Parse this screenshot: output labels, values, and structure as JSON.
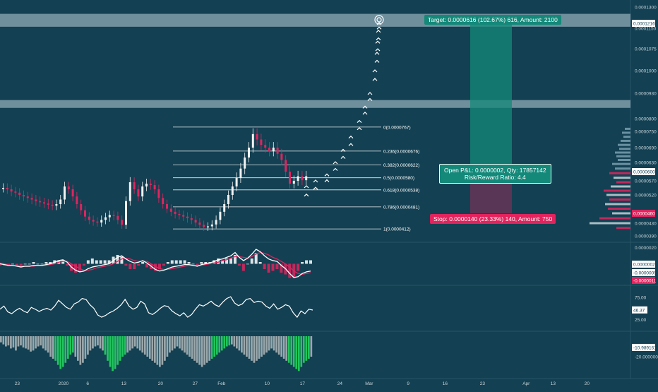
{
  "colors": {
    "background": "#134052",
    "bull": "#f2f2f2",
    "bear": "#e0245e",
    "target": "#14897a",
    "stop": "#e0245e",
    "zone": "#bcd0d8",
    "hist_pos": "#22c55e",
    "hist_neg": "#9aa7ab"
  },
  "trade": {
    "target_label": "Target: 0.0000616 (102.67%) 616, Amount: 2100",
    "stop_label": "Stop: 0.0000140 (23.33%) 140, Amount: 750",
    "pnl_line1": "Open P&L: 0.0000002, Qty: 17857142",
    "pnl_line2": "Risk/Reward Ratio: 4.4"
  },
  "chart_data": [
    {
      "type": "line",
      "name": "price",
      "x_labels": [
        "23",
        "2020",
        "6",
        "13",
        "20",
        "27",
        "Feb",
        "10",
        "17",
        "24",
        "Mar",
        "9",
        "16",
        "23",
        "Apr",
        "13",
        "20"
      ],
      "price_axis_ticks": [
        "0.0001300",
        "0.0001150",
        "0.0001075",
        "0.0001000",
        "0.0000930",
        "0.0000800",
        "0.0000750",
        "0.0000690",
        "0.0000630",
        "0.0000570",
        "0.0000520",
        "0.0000430",
        "0.0000390"
      ],
      "price_badges": [
        {
          "value": "0.0001216",
          "color": "#ffffff",
          "text_color": "#134052"
        },
        {
          "value": "0.0000600",
          "color": "#ffffff",
          "text_color": "#134052"
        },
        {
          "value": "0.0000460",
          "color": "#e0245e",
          "text_color": "#ffffff"
        }
      ],
      "fib_levels": [
        {
          "label": "0(0.0000767)",
          "value": 7.67e-05
        },
        {
          "label": "0.236(0.0000676)",
          "value": 6.76e-05
        },
        {
          "label": "0.382(0.0000622)",
          "value": 6.22e-05
        },
        {
          "label": "0.5(0.0000580)",
          "value": 5.8e-05
        },
        {
          "label": "0.618(0.0000538)",
          "value": 5.38e-05
        },
        {
          "label": "0.786(0.0000481)",
          "value": 4.81e-05
        },
        {
          "label": "1(0.0000412)",
          "value": 4.12e-05
        }
      ],
      "resistance_zones": [
        [
          0.000117,
          0.0001265
        ],
        [
          8.55e-05,
          8.95e-05
        ]
      ],
      "trade_entry": 6e-05,
      "trade_target": 0.0001216,
      "trade_stop": 4.6e-05,
      "projection": [
        [
          5.28e-05,
          5.5e-05
        ],
        [
          5.52e-05,
          5.7e-05
        ],
        [
          5.78e-05,
          5.9e-05
        ],
        [
          6.15e-05,
          6.3e-05
        ],
        [
          6.6e-05,
          6.8e-05
        ],
        [
          7.1e-05,
          7.3e-05
        ],
        [
          7.7e-05,
          7.9e-05
        ],
        [
          8.4e-05,
          8.6e-05
        ],
        [
          9.1e-05,
          9.3e-05
        ],
        [
          9.8e-05,
          0.0001
        ],
        [
          0.000104,
          0.000106
        ],
        [
          0.000108,
          0.00011
        ],
        [
          0.000112,
          0.000114
        ],
        [
          0.0001185,
          0.0001216
        ]
      ],
      "closes": [
        5.45e-05,
        5.4e-05,
        5.32e-05,
        5.28e-05,
        5.2e-05,
        5.15e-05,
        5.1e-05,
        5.05e-05,
        5e-05,
        4.96e-05,
        4.92e-05,
        4.88e-05,
        4.85e-05,
        4.9e-05,
        5.05e-05,
        5.5e-05,
        5.4e-05,
        5.15e-05,
        4.9e-05,
        4.7e-05,
        4.5e-05,
        4.4e-05,
        4.35e-05,
        4.32e-05,
        4.4e-05,
        4.48e-05,
        4.55e-05,
        4.52e-05,
        4.4e-05,
        4.25e-05,
        5e-05,
        5.65e-05,
        5.4e-05,
        5.15e-05,
        5.5e-05,
        5.6e-05,
        5.55e-05,
        5.4e-05,
        5.1e-05,
        4.9e-05,
        4.75e-05,
        4.65e-05,
        4.58e-05,
        4.55e-05,
        4.5e-05,
        4.45e-05,
        4.4e-05,
        4.32e-05,
        4.25e-05,
        4.18e-05,
        4.2e-05,
        4.26e-05,
        4.4e-05,
        4.65e-05,
        4.9e-05,
        5.2e-05,
        5.5e-05,
        5.8e-05,
        6.1e-05,
        6.5e-05,
        6.9e-05,
        7.4e-05,
        7.2e-05,
        7e-05,
        6.9e-05,
        6.75e-05,
        6.9e-05,
        6.65e-05,
        6.4e-05,
        6e-05,
        5.6e-05,
        5.7e-05,
        5.85e-05,
        5.72e-05,
        5.85e-05
      ],
      "volume_profile": [
        [
          7.6e-05,
          8
        ],
        [
          7.45e-05,
          12
        ],
        [
          7.3e-05,
          10
        ],
        [
          7.15e-05,
          14
        ],
        [
          7e-05,
          18
        ],
        [
          6.85e-05,
          16
        ],
        [
          6.7e-05,
          22
        ],
        [
          6.55e-05,
          20
        ],
        [
          6.4e-05,
          18
        ],
        [
          6.25e-05,
          26
        ],
        [
          6.1e-05,
          22
        ],
        [
          5.95e-05,
          30
        ],
        [
          5.8e-05,
          24
        ],
        [
          5.65e-05,
          20
        ],
        [
          5.5e-05,
          28
        ],
        [
          5.35e-05,
          38
        ],
        [
          5.2e-05,
          34
        ],
        [
          5.05e-05,
          30
        ],
        [
          4.9e-05,
          36
        ],
        [
          4.75e-05,
          32
        ],
        [
          4.6e-05,
          26
        ],
        [
          4.45e-05,
          44
        ],
        [
          4.3e-05,
          58
        ],
        [
          4.15e-05,
          20
        ]
      ]
    },
    {
      "type": "line",
      "name": "macd",
      "axis_ticks": [
        "0.0000020"
      ],
      "badges": [
        {
          "value": "0.0000002",
          "color": "#ffffff",
          "text_color": "#134052"
        },
        {
          "value": "-0.0000009",
          "color": "#ffffff",
          "text_color": "#134052"
        },
        {
          "value": "-0.0000011",
          "color": "#e0245e",
          "text_color": "#ffffff"
        }
      ],
      "ylim": [
        -2.5e-06,
        2.5e-06
      ],
      "macd": [
        0.0,
        -1e-07,
        -2e-07,
        -2e-07,
        -3e-07,
        -4e-07,
        -3e-07,
        -3e-07,
        -2e-07,
        -2e-07,
        -2e-07,
        -1e-07,
        0.0,
        2e-07,
        4e-07,
        5e-07,
        2e-07,
        -4e-07,
        -8e-07,
        -1e-06,
        -9e-07,
        -6e-07,
        -4e-07,
        -3e-07,
        -2e-07,
        -1e-07,
        0.0,
        4e-07,
        8e-07,
        1e-06,
        6e-07,
        3e-07,
        1e-07,
        2e-07,
        4e-07,
        1e-07,
        -3e-07,
        -7e-07,
        -9e-07,
        -8e-07,
        -6e-07,
        -4e-07,
        -3e-07,
        -2e-07,
        -1e-07,
        -1e-07,
        -2e-07,
        -3e-07,
        -1e-07,
        0.0,
        1e-07,
        3e-07,
        5e-07,
        6e-07,
        8e-07,
        1e-06,
        1.4e-06,
        8e-07,
        4e-07,
        7e-07,
        1.2e-06,
        1.8e-06,
        1.5e-06,
        1e-06,
        6e-07,
        4e-07,
        3e-07,
        -2e-07,
        -6e-07,
        -1.2e-06,
        -1.7e-06,
        -1.6e-06,
        -1.2e-06,
        -1e-06,
        -9e-07
      ],
      "signal": [
        1e-07,
        0.0,
        -1e-07,
        -2e-07,
        -2e-07,
        -3e-07,
        -3e-07,
        -3e-07,
        -3e-07,
        -2e-07,
        -2e-07,
        -2e-07,
        -1e-07,
        0.0,
        2e-07,
        3e-07,
        3e-07,
        0.0,
        -3e-07,
        -6e-07,
        -8e-07,
        -8e-07,
        -7e-07,
        -5e-07,
        -4e-07,
        -3e-07,
        -2e-07,
        0.0,
        3e-07,
        6e-07,
        7e-07,
        6e-07,
        4e-07,
        3e-07,
        3e-07,
        3e-07,
        0.0,
        -3e-07,
        -6e-07,
        -7e-07,
        -7e-07,
        -6e-07,
        -5e-07,
        -4e-07,
        -3e-07,
        -2e-07,
        -2e-07,
        -2e-07,
        -2e-07,
        -1e-07,
        0.0,
        1e-07,
        2e-07,
        4e-07,
        5e-07,
        7e-07,
        9e-07,
        9e-07,
        8e-07,
        7e-07,
        9e-07,
        1.2e-06,
        1.4e-06,
        1.3e-06,
        1.1e-06,
        8e-07,
        6e-07,
        3e-07,
        0.0,
        -4e-07,
        -9e-07,
        -1.2e-06,
        -1.3e-06,
        -1.2e-06,
        -1.1e-06
      ]
    },
    {
      "type": "line",
      "name": "rsi",
      "axis_ticks": [
        "75.00",
        "25.00"
      ],
      "badge": "46.37",
      "ylim": [
        0,
        100
      ],
      "values": [
        48,
        55,
        42,
        38,
        45,
        50,
        44,
        40,
        52,
        48,
        43,
        47,
        50,
        46,
        55,
        68,
        60,
        52,
        48,
        60,
        64,
        72,
        70,
        58,
        50,
        35,
        30,
        34,
        40,
        44,
        50,
        58,
        70,
        55,
        48,
        52,
        66,
        60,
        40,
        36,
        42,
        50,
        56,
        54,
        44,
        38,
        33,
        40,
        30,
        36,
        48,
        58,
        55,
        60,
        66,
        58,
        54,
        64,
        72,
        76,
        62,
        56,
        60,
        70,
        72,
        63,
        66,
        64,
        55,
        50,
        60,
        48,
        52,
        58,
        55,
        40,
        30,
        44,
        38,
        48,
        46
      ]
    },
    {
      "type": "bar",
      "name": "oscillator",
      "axis_ticks": [
        "-20.000000"
      ],
      "badge": "-10.9891610",
      "ylim": [
        -40,
        0
      ],
      "values": [
        -6,
        -8,
        -10,
        -9,
        -12,
        -11,
        -14,
        -10,
        -9,
        -11,
        -12,
        -13,
        -15,
        -14,
        -12,
        -10,
        -9,
        -12,
        -14,
        -16,
        -20,
        -22,
        -24,
        -28,
        -32,
        -30,
        -26,
        -22,
        -18,
        -16,
        -20,
        -24,
        -28,
        -26,
        -22,
        -18,
        -14,
        -12,
        -10,
        -9,
        -12,
        -14,
        -18,
        -24,
        -30,
        -34,
        -32,
        -28,
        -24,
        -20,
        -18,
        -16,
        -14,
        -12,
        -10,
        -12,
        -14,
        -16,
        -18,
        -20,
        -22,
        -24,
        -26,
        -28,
        -30,
        -28,
        -24,
        -20,
        -16,
        -14,
        -12,
        -10,
        -12,
        -14,
        -16,
        -18,
        -20,
        -22,
        -24,
        -26,
        -28,
        -30,
        -28,
        -26,
        -24,
        -22,
        -20,
        -18,
        -16,
        -14,
        -12,
        -10,
        -9,
        -8,
        -10,
        -12,
        -14,
        -16,
        -18,
        -20,
        -22,
        -24,
        -26,
        -24,
        -22,
        -20,
        -18,
        -16,
        -14,
        -12,
        -14,
        -16,
        -18,
        -20,
        -22,
        -24,
        -26,
        -28,
        -30,
        -32,
        -34,
        -30,
        -26,
        -24,
        -22,
        -20
      ],
      "positive_ranges": [
        [
          22,
          29
        ],
        [
          42,
          50
        ],
        [
          85,
          92
        ],
        [
          116,
          124
        ]
      ]
    }
  ]
}
